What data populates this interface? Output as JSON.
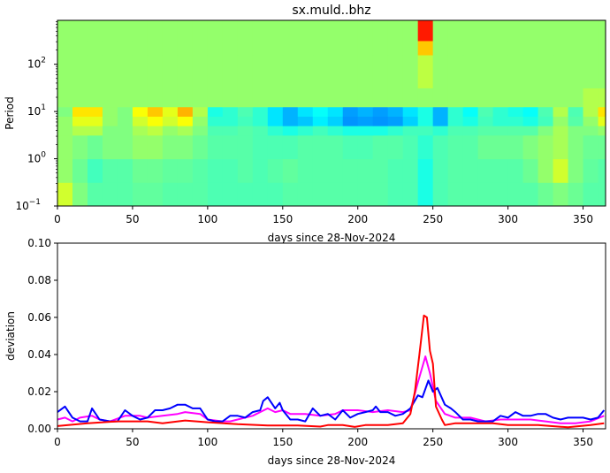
{
  "chart_data": [
    {
      "type": "heatmap",
      "title": "sx.muld..bhz",
      "xlabel": "days since 28-Nov-2024",
      "ylabel": "Period",
      "xlim": [
        0,
        365
      ],
      "ylim": [
        0.1,
        850
      ],
      "yscale": "log",
      "colormap": "jet",
      "xticks": [
        "0",
        "50",
        "100",
        "150",
        "200",
        "250",
        "300",
        "350"
      ],
      "yticks": [
        {
          "base": "10",
          "exp": "−1",
          "value": 0.1
        },
        {
          "base": "10",
          "exp": "0",
          "value": 1
        },
        {
          "base": "10",
          "exp": "1",
          "value": 10
        },
        {
          "base": "10",
          "exp": "2",
          "value": 100
        }
      ],
      "x_bin_days": 10,
      "period_edges": [
        0.1,
        0.316,
        1,
        3.16,
        5.01,
        7.94,
        12.6,
        31.6,
        158,
        316,
        850
      ],
      "z": [
        [
          0.58,
          0.5,
          0.46,
          0.46,
          0.46,
          0.47,
          0.47,
          0.46,
          0.46,
          0.46,
          0.45,
          0.45,
          0.45,
          0.45,
          0.45,
          0.46,
          0.46,
          0.46,
          0.46,
          0.46,
          0.46,
          0.46,
          0.45,
          0.45,
          0.4,
          0.45,
          0.46,
          0.46,
          0.46,
          0.46,
          0.46,
          0.46,
          0.48,
          0.5,
          0.48,
          0.46,
          0.46
        ],
        [
          0.52,
          0.48,
          0.44,
          0.46,
          0.46,
          0.48,
          0.48,
          0.47,
          0.47,
          0.46,
          0.45,
          0.45,
          0.46,
          0.45,
          0.46,
          0.47,
          0.46,
          0.46,
          0.46,
          0.46,
          0.46,
          0.46,
          0.45,
          0.45,
          0.4,
          0.45,
          0.46,
          0.46,
          0.46,
          0.46,
          0.46,
          0.48,
          0.52,
          0.58,
          0.5,
          0.47,
          0.46
        ],
        [
          0.52,
          0.5,
          0.48,
          0.5,
          0.5,
          0.52,
          0.52,
          0.5,
          0.5,
          0.48,
          0.46,
          0.46,
          0.46,
          0.45,
          0.45,
          0.45,
          0.46,
          0.46,
          0.46,
          0.45,
          0.45,
          0.46,
          0.46,
          0.45,
          0.42,
          0.45,
          0.46,
          0.46,
          0.48,
          0.48,
          0.48,
          0.5,
          0.52,
          0.54,
          0.5,
          0.48,
          0.48
        ],
        [
          0.52,
          0.55,
          0.55,
          0.5,
          0.5,
          0.54,
          0.56,
          0.52,
          0.54,
          0.5,
          0.45,
          0.45,
          0.46,
          0.45,
          0.42,
          0.4,
          0.42,
          0.44,
          0.42,
          0.4,
          0.4,
          0.4,
          0.42,
          0.44,
          0.44,
          0.42,
          0.45,
          0.45,
          0.46,
          0.46,
          0.46,
          0.46,
          0.5,
          0.54,
          0.5,
          0.5,
          0.52
        ],
        [
          0.52,
          0.6,
          0.6,
          0.52,
          0.5,
          0.58,
          0.62,
          0.58,
          0.62,
          0.52,
          0.42,
          0.42,
          0.44,
          0.42,
          0.35,
          0.3,
          0.32,
          0.36,
          0.33,
          0.27,
          0.28,
          0.27,
          0.28,
          0.33,
          0.4,
          0.3,
          0.42,
          0.4,
          0.44,
          0.42,
          0.42,
          0.4,
          0.44,
          0.52,
          0.46,
          0.52,
          0.6
        ],
        [
          0.5,
          0.65,
          0.65,
          0.52,
          0.5,
          0.62,
          0.68,
          0.6,
          0.7,
          0.55,
          0.4,
          0.42,
          0.45,
          0.42,
          0.35,
          0.3,
          0.35,
          0.38,
          0.35,
          0.28,
          0.3,
          0.28,
          0.3,
          0.35,
          0.4,
          0.3,
          0.42,
          0.38,
          0.45,
          0.42,
          0.4,
          0.38,
          0.45,
          0.55,
          0.45,
          0.55,
          0.65
        ],
        [
          0.52,
          0.52,
          0.52,
          0.52,
          0.52,
          0.52,
          0.52,
          0.52,
          0.52,
          0.52,
          0.52,
          0.52,
          0.52,
          0.52,
          0.52,
          0.52,
          0.52,
          0.52,
          0.52,
          0.52,
          0.52,
          0.52,
          0.52,
          0.52,
          0.52,
          0.52,
          0.52,
          0.52,
          0.52,
          0.52,
          0.52,
          0.52,
          0.52,
          0.52,
          0.52,
          0.55,
          0.55
        ],
        [
          0.52,
          0.52,
          0.52,
          0.52,
          0.52,
          0.52,
          0.52,
          0.52,
          0.52,
          0.52,
          0.52,
          0.52,
          0.52,
          0.52,
          0.52,
          0.52,
          0.52,
          0.52,
          0.52,
          0.52,
          0.52,
          0.52,
          0.52,
          0.52,
          0.56,
          0.52,
          0.52,
          0.52,
          0.52,
          0.52,
          0.52,
          0.52,
          0.52,
          0.52,
          0.52,
          0.52,
          0.52
        ],
        [
          0.52,
          0.52,
          0.52,
          0.52,
          0.52,
          0.52,
          0.52,
          0.52,
          0.52,
          0.52,
          0.52,
          0.52,
          0.52,
          0.52,
          0.52,
          0.52,
          0.52,
          0.52,
          0.52,
          0.52,
          0.52,
          0.52,
          0.52,
          0.52,
          0.68,
          0.52,
          0.52,
          0.52,
          0.52,
          0.52,
          0.52,
          0.52,
          0.52,
          0.52,
          0.52,
          0.52,
          0.52
        ],
        [
          0.52,
          0.52,
          0.52,
          0.52,
          0.52,
          0.52,
          0.52,
          0.52,
          0.52,
          0.52,
          0.52,
          0.52,
          0.52,
          0.52,
          0.52,
          0.52,
          0.52,
          0.52,
          0.52,
          0.52,
          0.52,
          0.52,
          0.52,
          0.52,
          0.85,
          0.52,
          0.52,
          0.52,
          0.52,
          0.52,
          0.52,
          0.52,
          0.52,
          0.52,
          0.52,
          0.52,
          0.52
        ]
      ]
    },
    {
      "type": "line",
      "xlabel": "days since 28-Nov-2024",
      "ylabel": "deviation",
      "xlim": [
        0,
        365
      ],
      "ylim": [
        0,
        0.1
      ],
      "xticks": [
        "0",
        "50",
        "100",
        "150",
        "200",
        "250",
        "300",
        "350"
      ],
      "yticks": [
        "0.00",
        "0.02",
        "0.04",
        "0.06",
        "0.08",
        "0.10"
      ],
      "grid": false,
      "series": [
        {
          "color": "#ff00ff",
          "points": [
            [
              0,
              0.005
            ],
            [
              5,
              0.006
            ],
            [
              10,
              0.004
            ],
            [
              15,
              0.006
            ],
            [
              23,
              0.007
            ],
            [
              28,
              0.005
            ],
            [
              35,
              0.004
            ],
            [
              45,
              0.007
            ],
            [
              55,
              0.007
            ],
            [
              60,
              0.006
            ],
            [
              70,
              0.007
            ],
            [
              80,
              0.008
            ],
            [
              85,
              0.009
            ],
            [
              95,
              0.008
            ],
            [
              100,
              0.005
            ],
            [
              110,
              0.004
            ],
            [
              115,
              0.004
            ],
            [
              120,
              0.005
            ],
            [
              130,
              0.007
            ],
            [
              140,
              0.011
            ],
            [
              145,
              0.009
            ],
            [
              150,
              0.01
            ],
            [
              155,
              0.008
            ],
            [
              165,
              0.008
            ],
            [
              175,
              0.007
            ],
            [
              185,
              0.008
            ],
            [
              190,
              0.01
            ],
            [
              200,
              0.01
            ],
            [
              210,
              0.009
            ],
            [
              220,
              0.01
            ],
            [
              230,
              0.009
            ],
            [
              235,
              0.01
            ],
            [
              240,
              0.025
            ],
            [
              245,
              0.039
            ],
            [
              248,
              0.03
            ],
            [
              252,
              0.015
            ],
            [
              258,
              0.008
            ],
            [
              265,
              0.006
            ],
            [
              275,
              0.006
            ],
            [
              285,
              0.004
            ],
            [
              295,
              0.005
            ],
            [
              305,
              0.005
            ],
            [
              315,
              0.005
            ],
            [
              325,
              0.004
            ],
            [
              335,
              0.003
            ],
            [
              345,
              0.003
            ],
            [
              355,
              0.004
            ],
            [
              364,
              0.007
            ]
          ]
        },
        {
          "color": "#0000ff",
          "points": [
            [
              0,
              0.009
            ],
            [
              5,
              0.012
            ],
            [
              10,
              0.006
            ],
            [
              15,
              0.004
            ],
            [
              20,
              0.004
            ],
            [
              23,
              0.011
            ],
            [
              28,
              0.005
            ],
            [
              35,
              0.004
            ],
            [
              40,
              0.004
            ],
            [
              45,
              0.01
            ],
            [
              50,
              0.007
            ],
            [
              55,
              0.005
            ],
            [
              60,
              0.006
            ],
            [
              65,
              0.01
            ],
            [
              70,
              0.01
            ],
            [
              75,
              0.011
            ],
            [
              80,
              0.013
            ],
            [
              85,
              0.013
            ],
            [
              90,
              0.011
            ],
            [
              95,
              0.011
            ],
            [
              100,
              0.005
            ],
            [
              105,
              0.004
            ],
            [
              110,
              0.004
            ],
            [
              115,
              0.007
            ],
            [
              120,
              0.007
            ],
            [
              125,
              0.006
            ],
            [
              130,
              0.009
            ],
            [
              135,
              0.01
            ],
            [
              137,
              0.015
            ],
            [
              140,
              0.017
            ],
            [
              145,
              0.011
            ],
            [
              148,
              0.014
            ],
            [
              150,
              0.01
            ],
            [
              155,
              0.005
            ],
            [
              160,
              0.005
            ],
            [
              165,
              0.004
            ],
            [
              170,
              0.011
            ],
            [
              175,
              0.007
            ],
            [
              180,
              0.008
            ],
            [
              185,
              0.005
            ],
            [
              190,
              0.01
            ],
            [
              195,
              0.006
            ],
            [
              200,
              0.008
            ],
            [
              205,
              0.009
            ],
            [
              210,
              0.01
            ],
            [
              212,
              0.012
            ],
            [
              215,
              0.009
            ],
            [
              220,
              0.009
            ],
            [
              225,
              0.007
            ],
            [
              230,
              0.008
            ],
            [
              235,
              0.011
            ],
            [
              240,
              0.018
            ],
            [
              243,
              0.017
            ],
            [
              247,
              0.026
            ],
            [
              250,
              0.02
            ],
            [
              253,
              0.022
            ],
            [
              258,
              0.013
            ],
            [
              262,
              0.011
            ],
            [
              265,
              0.009
            ],
            [
              270,
              0.005
            ],
            [
              275,
              0.005
            ],
            [
              280,
              0.004
            ],
            [
              290,
              0.004
            ],
            [
              295,
              0.007
            ],
            [
              300,
              0.006
            ],
            [
              305,
              0.009
            ],
            [
              310,
              0.007
            ],
            [
              315,
              0.007
            ],
            [
              320,
              0.008
            ],
            [
              325,
              0.008
            ],
            [
              330,
              0.006
            ],
            [
              335,
              0.005
            ],
            [
              340,
              0.006
            ],
            [
              345,
              0.006
            ],
            [
              350,
              0.006
            ],
            [
              355,
              0.005
            ],
            [
              360,
              0.006
            ],
            [
              364,
              0.01
            ]
          ]
        },
        {
          "color": "#ff0000",
          "points": [
            [
              0,
              0.0015
            ],
            [
              20,
              0.003
            ],
            [
              40,
              0.004
            ],
            [
              60,
              0.004
            ],
            [
              70,
              0.003
            ],
            [
              85,
              0.0045
            ],
            [
              100,
              0.0035
            ],
            [
              120,
              0.0025
            ],
            [
              140,
              0.0018
            ],
            [
              160,
              0.0018
            ],
            [
              175,
              0.0012
            ],
            [
              180,
              0.002
            ],
            [
              190,
              0.002
            ],
            [
              198,
              0.001
            ],
            [
              205,
              0.002
            ],
            [
              220,
              0.002
            ],
            [
              230,
              0.003
            ],
            [
              235,
              0.008
            ],
            [
              238,
              0.02
            ],
            [
              241,
              0.04
            ],
            [
              244,
              0.061
            ],
            [
              246,
              0.06
            ],
            [
              248,
              0.042
            ],
            [
              250,
              0.035
            ],
            [
              252,
              0.012
            ],
            [
              256,
              0.005
            ],
            [
              258,
              0.002
            ],
            [
              265,
              0.003
            ],
            [
              280,
              0.003
            ],
            [
              290,
              0.003
            ],
            [
              300,
              0.002
            ],
            [
              320,
              0.002
            ],
            [
              340,
              0.0008
            ],
            [
              355,
              0.002
            ],
            [
              364,
              0.003
            ]
          ]
        }
      ]
    }
  ]
}
